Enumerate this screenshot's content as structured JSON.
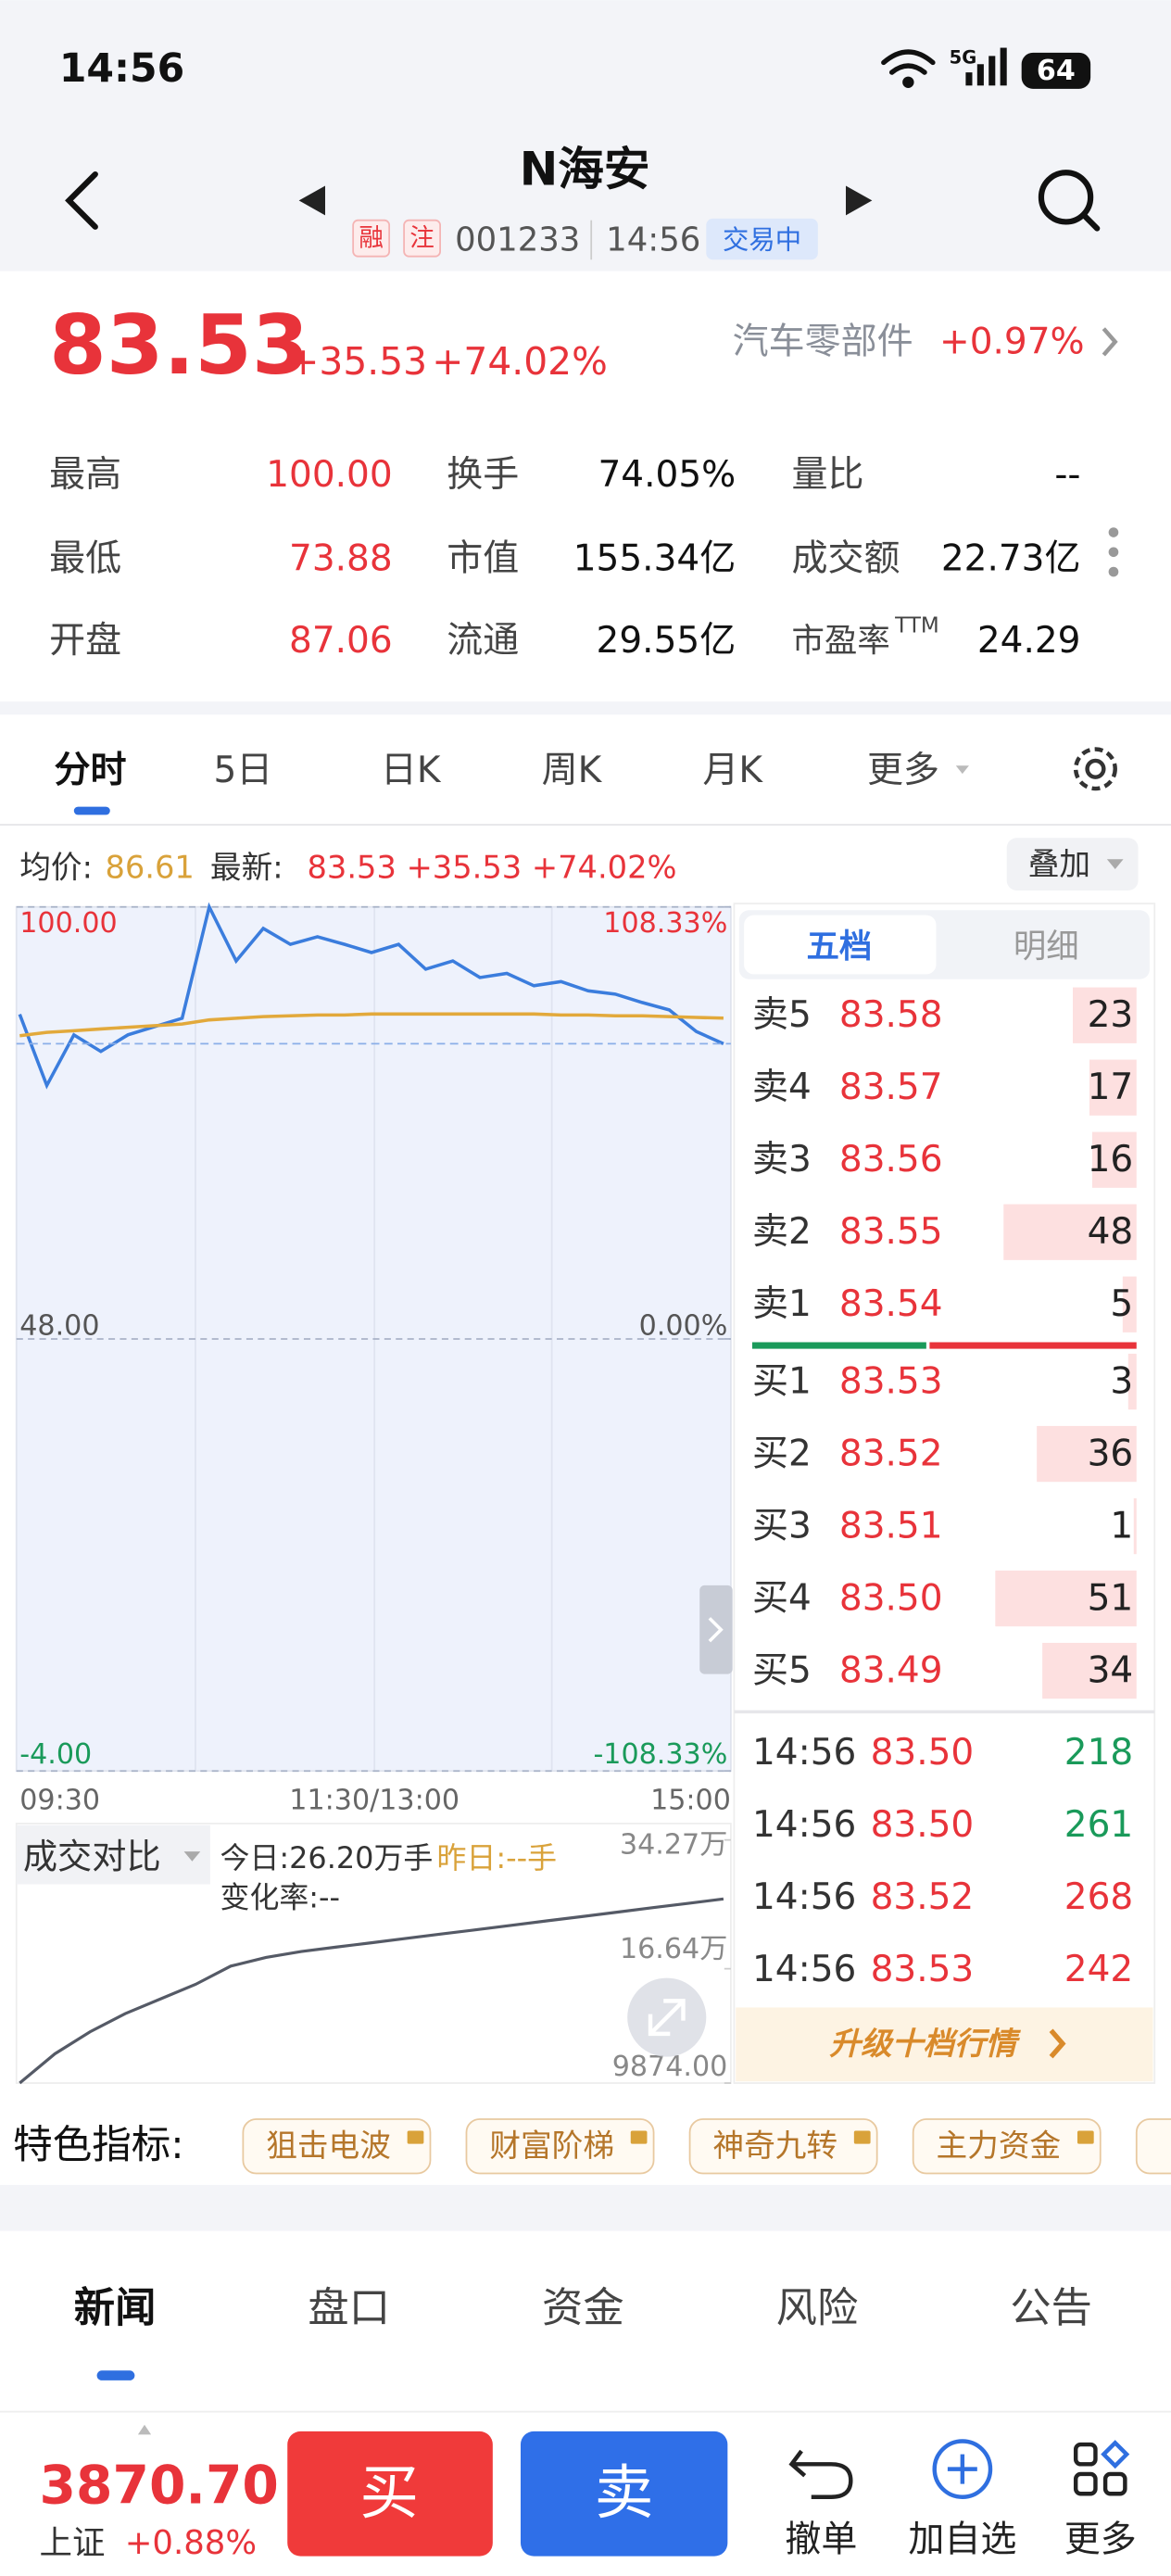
{
  "status_bar": {
    "time": "14:56",
    "network": "5G",
    "battery": "64"
  },
  "header": {
    "title": "N海安",
    "tags": [
      "融",
      "注"
    ],
    "code": "001233",
    "time": "14:56",
    "state": "交易中"
  },
  "quote": {
    "price": "83.53",
    "change": "+35.53",
    "change_pct": "+74.02%",
    "sector": "汽车零部件",
    "sector_change": "+0.97%"
  },
  "stats": [
    [
      {
        "label": "最高",
        "value": "100.00"
      },
      {
        "label": "换手",
        "value": "74.05%"
      },
      {
        "label": "量比",
        "value": "--"
      }
    ],
    [
      {
        "label": "最低",
        "value": "73.88"
      },
      {
        "label": "市值",
        "value": "155.34亿"
      },
      {
        "label": "成交额",
        "value": "22.73亿"
      }
    ],
    [
      {
        "label": "开盘",
        "value": "87.06"
      },
      {
        "label": "流通",
        "value": "29.55亿"
      },
      {
        "label": "市盈率",
        "label_sup": "TTM",
        "value": "24.29"
      }
    ]
  ],
  "chart_tabs": [
    "分时",
    "5日",
    "日K",
    "周K",
    "月K",
    "更多"
  ],
  "intraday_info": {
    "avg_label": "均价:",
    "avg": "86.61",
    "latest_label": "最新:",
    "latest": "83.53 +35.53 +74.02%",
    "overlay": "叠加"
  },
  "chart_data": [
    {
      "type": "line",
      "x_labels": [
        "09:30",
        "11:30/13:00",
        "15:00"
      ],
      "ylim": [
        -4,
        100
      ],
      "yticks": [
        {
          "value": 100,
          "label": "100.00"
        },
        {
          "value": 48,
          "label": "48.00"
        },
        {
          "value": -4,
          "label": "-4.00"
        }
      ],
      "y2lim": [
        -108.33,
        108.33
      ],
      "y2ticks": [
        {
          "value": 108.33,
          "label": "108.33%"
        },
        {
          "value": 0,
          "label": "0.00%"
        },
        {
          "value": -108.33,
          "label": "-108.33%"
        }
      ],
      "grid": true,
      "series": [
        {
          "color": "#3b7ddd",
          "values": [
            87.06,
            78.5,
            84.6,
            82.6,
            84.6,
            85.6,
            86.6,
            100,
            93.5,
            97.4,
            95.5,
            96.4,
            95.5,
            94.5,
            95.5,
            92.5,
            93.5,
            91.5,
            92.0,
            90.5,
            91.0,
            89.9,
            89.5,
            88.5,
            87.6,
            85.0,
            83.53
          ]
        },
        {
          "color": "#e2a93b",
          "values": [
            84.5,
            84.9,
            85.1,
            85.3,
            85.5,
            85.7,
            85.9,
            86.4,
            86.6,
            86.8,
            86.9,
            87.0,
            87.0,
            87.1,
            87.1,
            87.1,
            87.1,
            87.1,
            87.1,
            87.1,
            87.0,
            87.0,
            86.9,
            86.9,
            86.8,
            86.7,
            86.61
          ]
        }
      ]
    },
    {
      "type": "line",
      "title": "成交对比",
      "today": "今日:26.20万手",
      "yesterday": "昨日:--手",
      "change": "变化率:--",
      "ylim": [
        0.9874,
        34.27
      ],
      "yticks": [
        {
          "value": 34.27,
          "label": "34.27万"
        },
        {
          "value": 16.64,
          "label": "16.64万"
        },
        {
          "value": 0.9874,
          "label": "9874.00"
        }
      ],
      "series": [
        {
          "color": "#555a66",
          "values": [
            0.9874,
            5,
            8,
            10.5,
            12.5,
            14.5,
            17,
            18.2,
            19,
            19.6,
            20.2,
            20.8,
            21.4,
            22,
            22.6,
            23.2,
            23.8,
            24.4,
            25,
            25.6,
            26.2
          ]
        }
      ]
    }
  ],
  "order_book": {
    "tabs": [
      "五档",
      "明细"
    ],
    "asks": [
      {
        "label": "卖5",
        "price": "83.58",
        "qty": 23
      },
      {
        "label": "卖4",
        "price": "83.57",
        "qty": 17
      },
      {
        "label": "卖3",
        "price": "83.56",
        "qty": 16
      },
      {
        "label": "卖2",
        "price": "83.55",
        "qty": 48
      },
      {
        "label": "卖1",
        "price": "83.54",
        "qty": 5
      }
    ],
    "bids": [
      {
        "label": "买1",
        "price": "83.53",
        "qty": 3
      },
      {
        "label": "买2",
        "price": "83.52",
        "qty": 36
      },
      {
        "label": "买3",
        "price": "83.51",
        "qty": 1
      },
      {
        "label": "买4",
        "price": "83.50",
        "qty": 51
      },
      {
        "label": "买5",
        "price": "83.49",
        "qty": 34
      }
    ],
    "trades": [
      {
        "time": "14:56",
        "price": "83.50",
        "volume": 218,
        "color": "#1a9a5a"
      },
      {
        "time": "14:56",
        "price": "83.50",
        "volume": 261,
        "color": "#1a9a5a"
      },
      {
        "time": "14:56",
        "price": "83.52",
        "volume": 268,
        "color": "#e8333a"
      },
      {
        "time": "14:56",
        "price": "83.53",
        "volume": 242,
        "color": "#e8333a"
      }
    ],
    "upgrade": "升级十档行情"
  },
  "features": {
    "label": "特色指标:",
    "items": [
      "狙击电波",
      "财富阶梯",
      "神奇九转",
      "主力资金"
    ]
  },
  "news_tabs": [
    "新闻",
    "盘口",
    "资金",
    "风险",
    "公告"
  ],
  "bottom": {
    "index_value": "3870.70",
    "index_name": "上证",
    "index_change": "+0.88%",
    "buy": "买",
    "sell": "卖",
    "actions": [
      "撤单",
      "加自选",
      "更多"
    ]
  }
}
